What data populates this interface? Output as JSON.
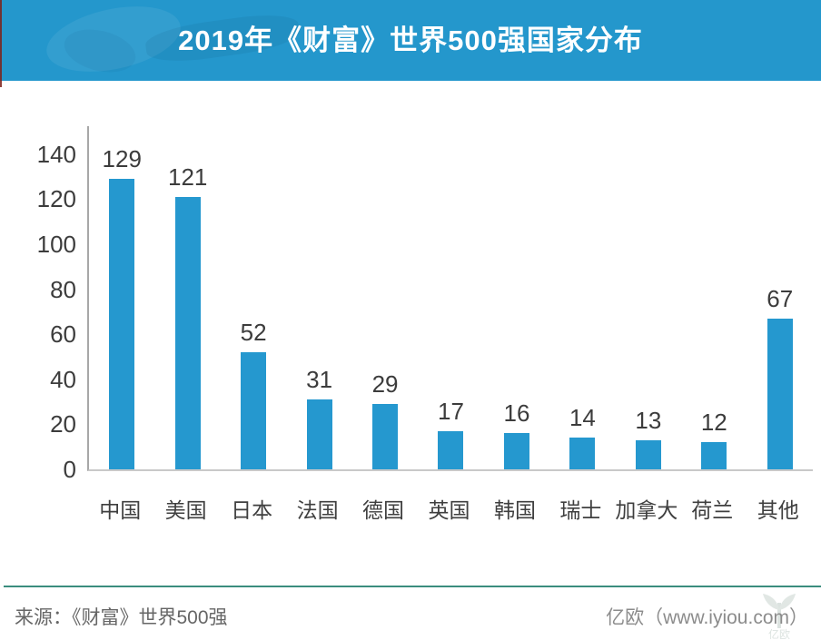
{
  "header": {
    "title": "2019年《财富》世界500强国家分布",
    "banner_color": "#2497cc"
  },
  "chart_data": {
    "type": "bar",
    "title": "2019年《财富》世界500强国家分布",
    "categories": [
      "中国",
      "美国",
      "日本",
      "法国",
      "德国",
      "英国",
      "韩国",
      "瑞士",
      "加拿大",
      "荷兰",
      "其他"
    ],
    "values": [
      129,
      121,
      52,
      31,
      29,
      17,
      16,
      14,
      13,
      12,
      67
    ],
    "y_ticks": [
      0,
      20,
      40,
      60,
      80,
      100,
      120,
      140
    ],
    "ylim": [
      0,
      152
    ],
    "xlabel": "",
    "ylabel": "",
    "grid": false,
    "legend": null,
    "bar_color": "#2598cf"
  },
  "footer": {
    "source_label": "来源：《财富》世界500强",
    "credit_label": "亿欧（www.iyiou.com）",
    "divider_color": "#3a8d7e",
    "watermark_icon": "iyiou-sprout-logo"
  }
}
